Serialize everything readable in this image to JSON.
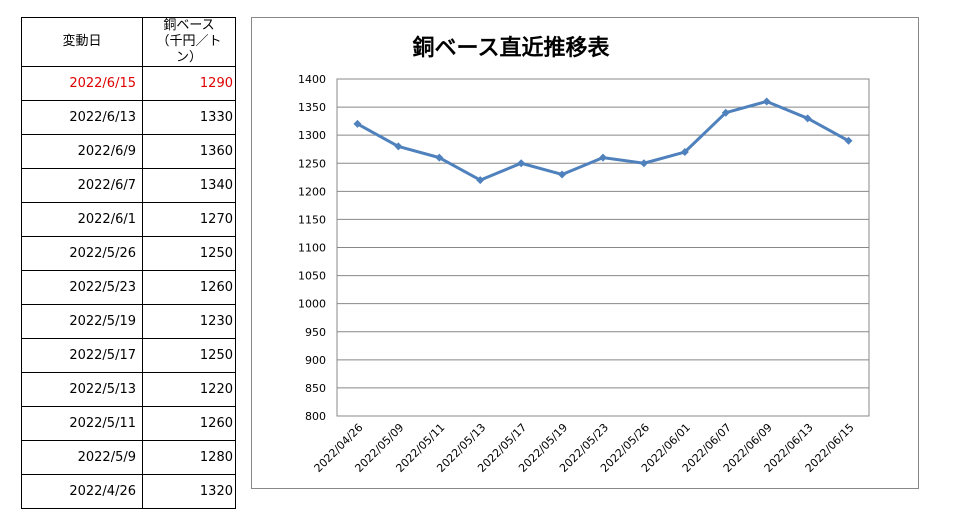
{
  "table": {
    "col_date": "変動日",
    "col_value_line1": "銅ベース",
    "col_value_line2": "（千円／トン）",
    "rows": [
      {
        "date": "2022/6/15",
        "value": "1290",
        "highlight": true
      },
      {
        "date": "2022/6/13",
        "value": "1330"
      },
      {
        "date": "2022/6/9",
        "value": "1360"
      },
      {
        "date": "2022/6/7",
        "value": "1340"
      },
      {
        "date": "2022/6/1",
        "value": "1270"
      },
      {
        "date": "2022/5/26",
        "value": "1250"
      },
      {
        "date": "2022/5/23",
        "value": "1260"
      },
      {
        "date": "2022/5/19",
        "value": "1230"
      },
      {
        "date": "2022/5/17",
        "value": "1250"
      },
      {
        "date": "2022/5/13",
        "value": "1220"
      },
      {
        "date": "2022/5/11",
        "value": "1260"
      },
      {
        "date": "2022/5/9",
        "value": "1280"
      },
      {
        "date": "2022/4/26",
        "value": "1320"
      }
    ],
    "highlight_color": "#e00000"
  },
  "chart_data": {
    "type": "line",
    "title": "銅ベース直近推移表",
    "categories": [
      "2022/04/26",
      "2022/05/09",
      "2022/05/11",
      "2022/05/13",
      "2022/05/17",
      "2022/05/19",
      "2022/05/23",
      "2022/05/26",
      "2022/06/01",
      "2022/06/07",
      "2022/06/09",
      "2022/06/13",
      "2022/06/15"
    ],
    "values": [
      1320,
      1280,
      1260,
      1220,
      1250,
      1230,
      1260,
      1250,
      1270,
      1340,
      1360,
      1330,
      1290
    ],
    "ylim": [
      800,
      1400
    ],
    "yticks": [
      "800",
      "850",
      "900",
      "950",
      "1000",
      "1050",
      "1100",
      "1150",
      "1200",
      "1250",
      "1300",
      "1350",
      "1400"
    ],
    "grid": true,
    "line_color": "#4f81bd",
    "xlabel": "",
    "ylabel": ""
  }
}
